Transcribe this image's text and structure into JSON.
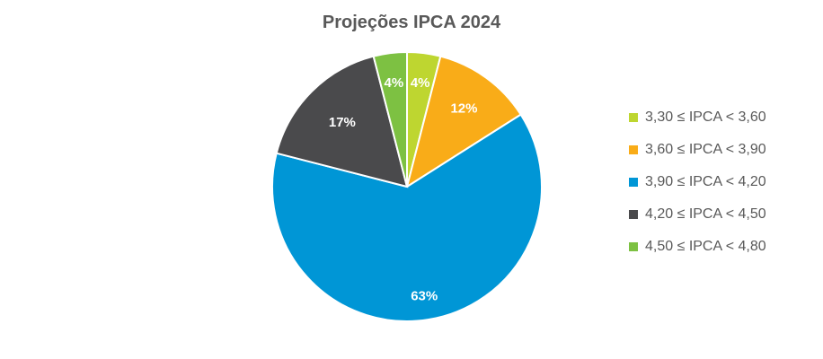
{
  "chart_data": {
    "type": "pie",
    "title": "Projeções IPCA 2024",
    "categories": [
      "3,30 ≤ IPCA < 3,60",
      "3,60 ≤ IPCA < 3,90",
      "3,90 ≤ IPCA < 4,20",
      "4,20 ≤ IPCA < 4,50",
      "4,50 ≤ IPCA < 4,80"
    ],
    "values": [
      4,
      12,
      63,
      17,
      4
    ],
    "value_labels": [
      "4%",
      "12%",
      "63%",
      "17%",
      "4%"
    ],
    "colors": [
      "#BED630",
      "#F9AC18",
      "#0096D6",
      "#4A4A4C",
      "#7DC142"
    ],
    "legend_position": "right"
  }
}
